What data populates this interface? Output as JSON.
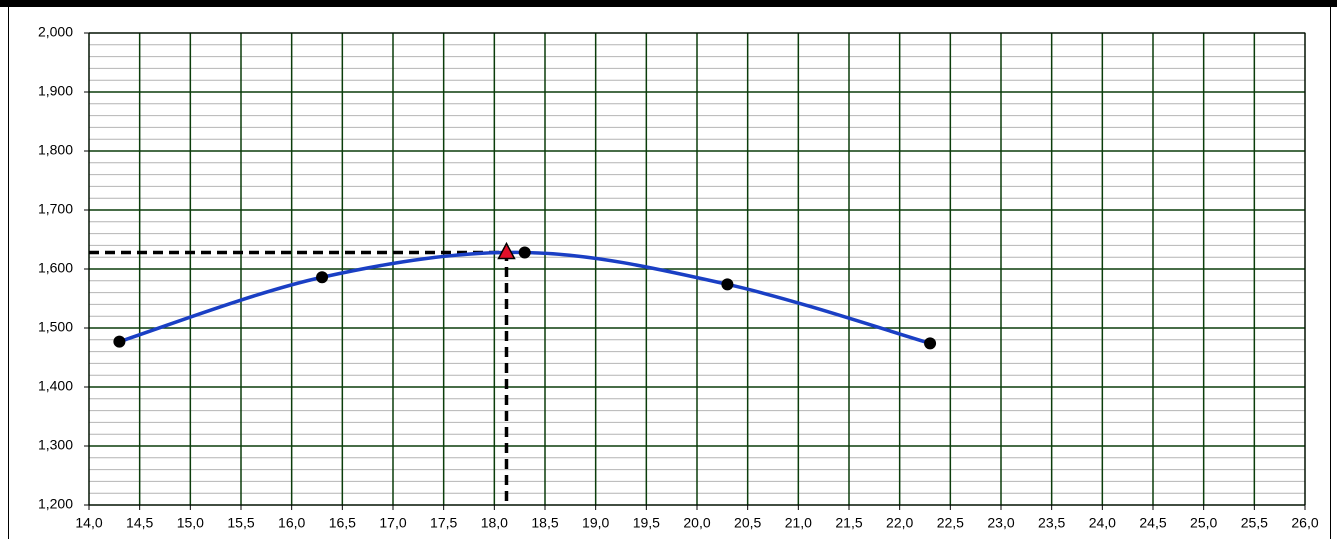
{
  "chart_data": {
    "type": "scatter",
    "xlim": [
      14,
      26
    ],
    "xticks": [
      {
        "value": 14,
        "label": "14,0"
      },
      {
        "value": 14.5,
        "label": "14,5"
      },
      {
        "value": 15,
        "label": "15,0"
      },
      {
        "value": 15.5,
        "label": "15,5"
      },
      {
        "value": 16,
        "label": "16,0"
      },
      {
        "value": 16.5,
        "label": "16,5"
      },
      {
        "value": 17,
        "label": "17,0"
      },
      {
        "value": 17.5,
        "label": "17,5"
      },
      {
        "value": 18,
        "label": "18,0"
      },
      {
        "value": 18.5,
        "label": "18,5"
      },
      {
        "value": 19,
        "label": "19,0"
      },
      {
        "value": 19.5,
        "label": "19,5"
      },
      {
        "value": 20,
        "label": "20,0"
      },
      {
        "value": 20.5,
        "label": "20,5"
      },
      {
        "value": 21,
        "label": "21,0"
      },
      {
        "value": 21.5,
        "label": "21,5"
      },
      {
        "value": 22,
        "label": "22,0"
      },
      {
        "value": 22.5,
        "label": "22,5"
      },
      {
        "value": 23,
        "label": "23,0"
      },
      {
        "value": 23.5,
        "label": "23,5"
      },
      {
        "value": 24,
        "label": "24,0"
      },
      {
        "value": 24.5,
        "label": "24,5"
      },
      {
        "value": 25,
        "label": "25,0"
      },
      {
        "value": 25.5,
        "label": "25,5"
      },
      {
        "value": 26,
        "label": "26,0"
      }
    ],
    "ylim": [
      1.2,
      2.0
    ],
    "yticks": [
      {
        "value": 1.2,
        "label": "1,200"
      },
      {
        "value": 1.3,
        "label": "1,300"
      },
      {
        "value": 1.4,
        "label": "1,400"
      },
      {
        "value": 1.5,
        "label": "1,500"
      },
      {
        "value": 1.6,
        "label": "1,600"
      },
      {
        "value": 1.7,
        "label": "1,700"
      },
      {
        "value": 1.8,
        "label": "1,800"
      },
      {
        "value": 1.9,
        "label": "1,900"
      },
      {
        "value": 2.0,
        "label": "2,000"
      }
    ],
    "yminorticks": [
      1.22,
      1.24,
      1.26,
      1.28,
      1.32,
      1.34,
      1.36,
      1.38,
      1.42,
      1.44,
      1.46,
      1.48,
      1.52,
      1.54,
      1.56,
      1.58,
      1.62,
      1.64,
      1.66,
      1.68,
      1.72,
      1.74,
      1.76,
      1.78,
      1.82,
      1.84,
      1.86,
      1.88,
      1.92,
      1.94,
      1.96,
      1.98
    ],
    "grid": true,
    "grid_color": "#0b3d0b",
    "minor_grid_color": "#b4b4b4",
    "series": [
      {
        "color": "#1a3fc4",
        "marker_color": "#000000",
        "x": [
          14.3,
          16.3,
          18.3,
          20.3,
          22.3
        ],
        "values": [
          1.477,
          1.586,
          1.628,
          1.574,
          1.474
        ]
      },
      {
        "color": "#e0102a",
        "x": [
          18.12
        ],
        "values": [
          1.628
        ]
      }
    ]
  }
}
